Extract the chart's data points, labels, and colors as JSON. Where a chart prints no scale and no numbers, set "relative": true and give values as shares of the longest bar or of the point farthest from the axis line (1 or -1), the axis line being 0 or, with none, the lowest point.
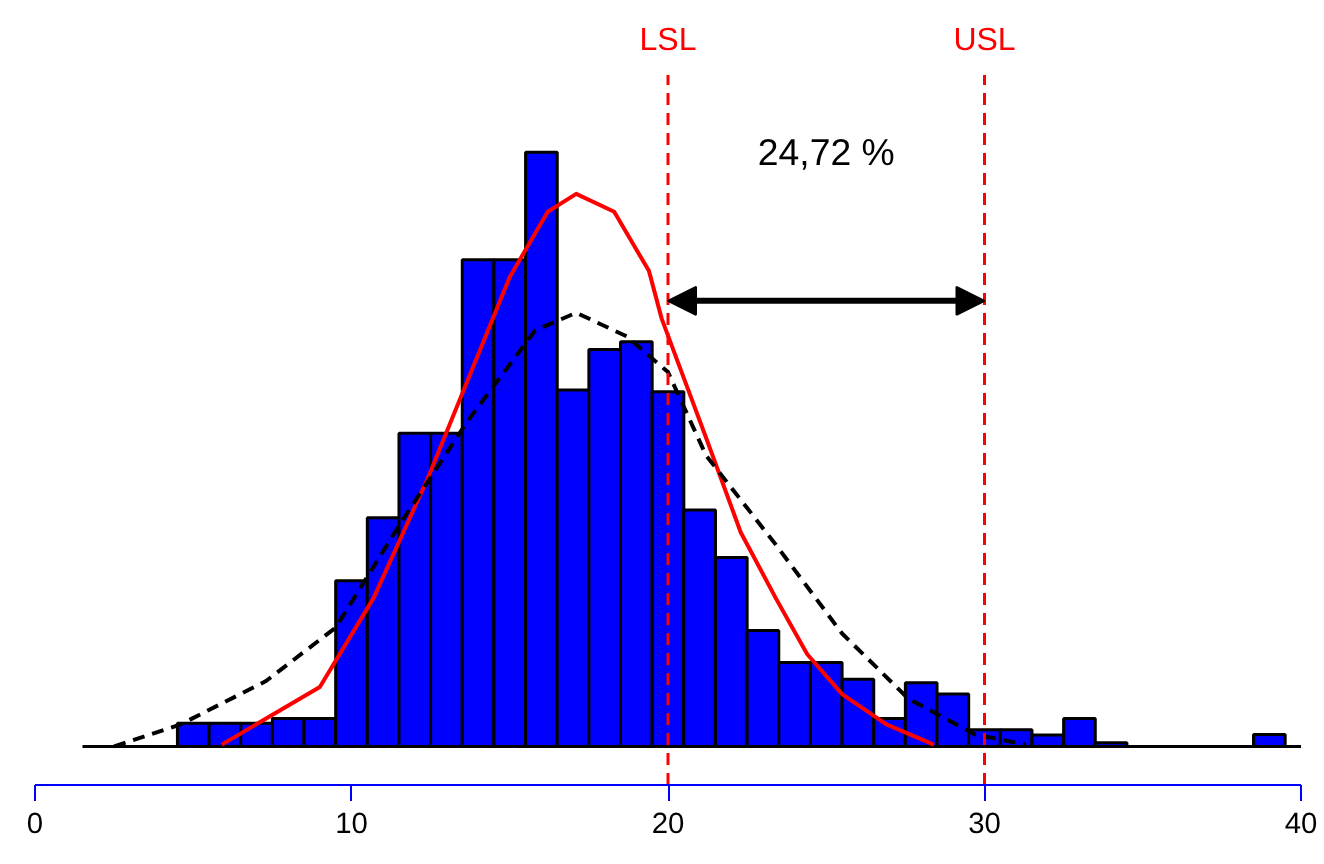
{
  "chart_data": {
    "type": "histogram",
    "relative": true,
    "color": "#0000ff",
    "bins": [
      4.5,
      5.5,
      6.5,
      7.5,
      8.5,
      9.5,
      10.5,
      11.5,
      12.5,
      13.5,
      14.5,
      15.5,
      16.5,
      17.5,
      18.5,
      19.5,
      20.5,
      21.5,
      22.5,
      23.5,
      24.5,
      25.5,
      26.5,
      27.5,
      28.5,
      29.5,
      30.5,
      31.5,
      32.5,
      33.5,
      34.5,
      35.5,
      36.5,
      37.5,
      38.5,
      39.5
    ],
    "values": [
      0.039,
      0.039,
      0.039,
      0.047,
      0.047,
      0.279,
      0.385,
      0.527,
      0.527,
      0.819,
      0.819,
      1,
      0.6,
      0.668,
      0.681,
      0.597,
      0.398,
      0.318,
      0.195,
      0.141,
      0.141,
      0.113,
      0.047,
      0.107,
      0.088,
      0.028,
      0.028,
      0.019,
      0.047,
      0.006,
      0,
      0,
      0,
      0,
      0.02
    ],
    "series": [
      {
        "type": "line",
        "color": "#ff0000",
        "line_style": "solid",
        "x": [
          5.9,
          9.0,
          10.7,
          12.4,
          13.7,
          15.0,
          16.2,
          17.1,
          18.3,
          19.4,
          19.8,
          21.2,
          22.3,
          23.4,
          24.4,
          25.5,
          26.9,
          28.4
        ],
        "values": [
          0.003,
          0.1,
          0.25,
          0.45,
          0.62,
          0.79,
          0.9,
          0.93,
          0.9,
          0.8,
          0.72,
          0.52,
          0.36,
          0.25,
          0.155,
          0.088,
          0.037,
          0.003
        ]
      },
      {
        "type": "line",
        "color": "#000000",
        "line_style": "dashed",
        "x": [
          2.5,
          4.6,
          7.3,
          9.5,
          11.6,
          13.7,
          15.8,
          17.1,
          18.7,
          20.0,
          21.2,
          23.4,
          25.5,
          27.6,
          29.7,
          31.3
        ],
        "values": [
          0,
          0.037,
          0.11,
          0.2,
          0.38,
          0.55,
          0.7,
          0.73,
          0.69,
          0.63,
          0.49,
          0.34,
          0.19,
          0.08,
          0.02,
          0.003
        ]
      }
    ],
    "xlim": [
      0,
      40
    ],
    "xticks": [
      0,
      10,
      20,
      30,
      40
    ],
    "tick_labels": "x",
    "grid": false,
    "ref_lines": [
      {
        "axis": "x",
        "value": 20,
        "label": "LSL",
        "color": "#ff0000",
        "line_style": "dashed"
      },
      {
        "axis": "x",
        "value": 30,
        "label": "USL",
        "color": "#ff0000",
        "line_style": "dashed"
      }
    ],
    "annotations": [
      "24,72 %"
    ]
  }
}
